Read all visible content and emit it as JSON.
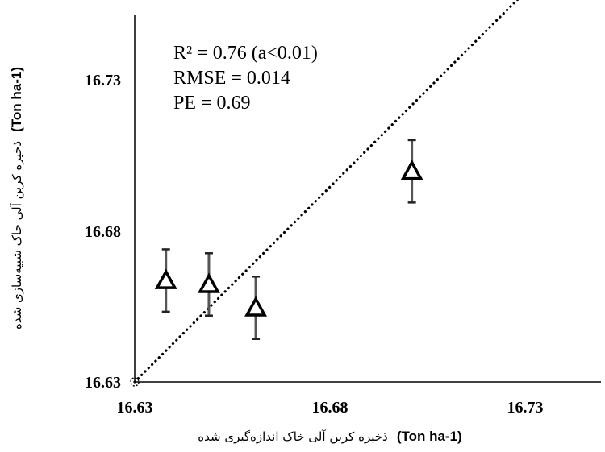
{
  "chart_data": {
    "type": "scatter",
    "xlim": [
      16.63,
      16.755
    ],
    "ylim": [
      16.63,
      16.755
    ],
    "x_ticks": [
      "16.63",
      "16.68",
      "16.73"
    ],
    "y_ticks": [
      "16.63",
      "16.68",
      "16.73"
    ],
    "points": [
      {
        "x": 16.638,
        "y": 16.656,
        "err": 0.008
      },
      {
        "x": 16.649,
        "y": 16.655,
        "err": 0.008
      },
      {
        "x": 16.661,
        "y": 16.649,
        "err": 0.008
      },
      {
        "x": 16.701,
        "y": 16.684,
        "err": 0.008
      }
    ],
    "reference_line": {
      "from": [
        16.63,
        16.63
      ],
      "to": [
        16.755,
        16.755
      ]
    },
    "stats": [
      "R² = 0.76 (a<0.01)",
      "RMSE = 0.014",
      "PE = 0.69"
    ],
    "xlabel_text": "ذخیره کربن آلی خاک اندازه‌گیری شده",
    "xlabel_unit": "(Ton ha-1)",
    "ylabel_text": "ذخیره کربن آلی خاک شبیه‌سازی شده",
    "ylabel_unit": "(Ton ha-1)",
    "grid": false,
    "legend": "none"
  }
}
